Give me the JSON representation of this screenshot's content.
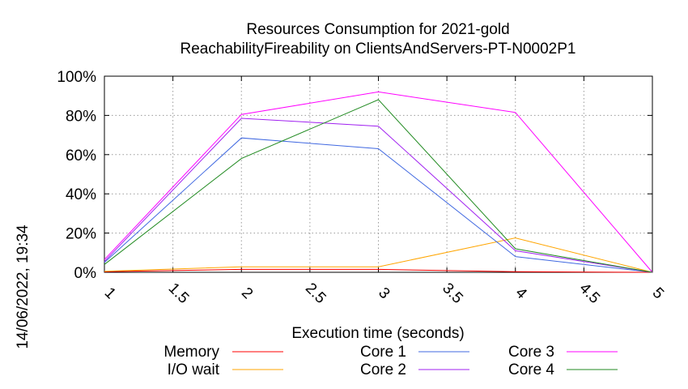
{
  "side_timestamp": "14/06/2022, 19:34",
  "chart_data": {
    "type": "line",
    "title": "Resources Consumption for 2021-gold",
    "subtitle": "ReachabilityFireability on ClientsAndServers-PT-N0002P1",
    "xlabel": "Execution time (seconds)",
    "ylabel": "",
    "x": [
      1,
      2,
      3,
      4,
      5
    ],
    "xlim": [
      1,
      5
    ],
    "ylim": [
      0,
      100
    ],
    "x_ticks": [
      1,
      1.5,
      2,
      2.5,
      3,
      3.5,
      4,
      4.5,
      5
    ],
    "x_tick_labels": [
      "1",
      "1.5",
      "2",
      "2.5",
      "3",
      "3.5",
      "4",
      "4.5",
      "5"
    ],
    "y_ticks": [
      0,
      20,
      40,
      60,
      80,
      100
    ],
    "y_tick_labels": [
      "0%",
      "20%",
      "40%",
      "60%",
      "80%",
      "100%"
    ],
    "grid": true,
    "legend_position": "bottom",
    "series": [
      {
        "name": "Memory",
        "color": "#ff0000",
        "values": [
          0.3,
          1.5,
          1.5,
          0.3,
          0
        ]
      },
      {
        "name": "I/O wait",
        "color": "#ffa500",
        "values": [
          0.5,
          2.8,
          2.8,
          17.5,
          0
        ]
      },
      {
        "name": "Core 1",
        "color": "#4169e1",
        "values": [
          5,
          68.5,
          63,
          8,
          0
        ]
      },
      {
        "name": "Core 2",
        "color": "#a020f0",
        "values": [
          5.5,
          78.5,
          74.5,
          11,
          0
        ]
      },
      {
        "name": "Core 3",
        "color": "#ff00ff",
        "values": [
          6.5,
          80.5,
          92,
          81.5,
          0
        ]
      },
      {
        "name": "Core 4",
        "color": "#228b22",
        "values": [
          4,
          58,
          88,
          12,
          0
        ]
      }
    ]
  }
}
